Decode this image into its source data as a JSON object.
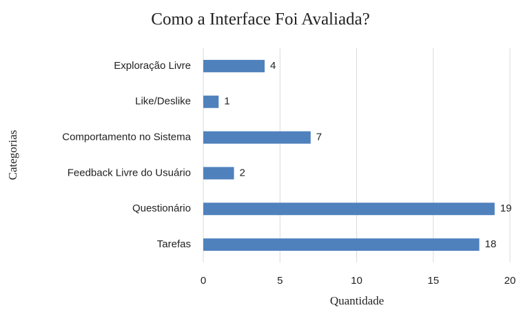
{
  "chart_data": {
    "type": "bar",
    "orientation": "horizontal",
    "title": "Como a Interface Foi Avaliada?",
    "x_label": "Quantidade",
    "y_label": "Categorias",
    "categories": [
      "Exploração Livre",
      "Like/Deslike",
      "Comportamento no Sistema",
      "Feedback Livre do Usuário",
      "Questionário",
      "Tarefas"
    ],
    "values": [
      4,
      1,
      7,
      2,
      19,
      18
    ],
    "color": "#4f81bd",
    "xlim": [
      0,
      20
    ],
    "xticks": [
      0,
      5,
      10,
      15,
      20
    ],
    "grid": true,
    "data_labels": true
  }
}
